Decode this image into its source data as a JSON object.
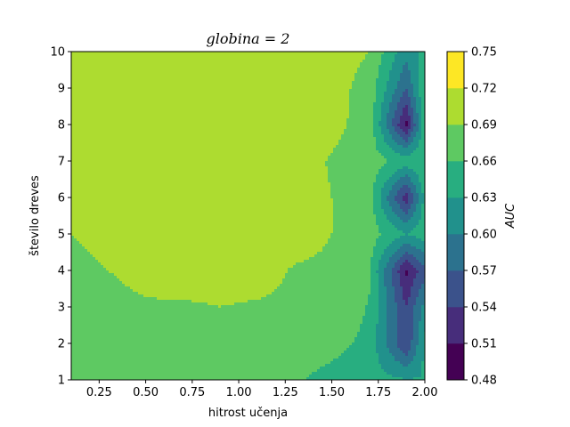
{
  "chart_data": {
    "type": "heatmap",
    "subtype": "filled-contour",
    "title": "globina = 2",
    "xlabel": "hitrost učenja",
    "ylabel": "število dreves",
    "colorbar_label": "AUC",
    "xlim": [
      0.1,
      2.0
    ],
    "ylim": [
      1,
      10
    ],
    "x_ticks": [
      "0.25",
      "0.50",
      "0.75",
      "1.00",
      "1.25",
      "1.50",
      "1.75",
      "2.00"
    ],
    "y_ticks": [
      "1",
      "2",
      "3",
      "4",
      "5",
      "6",
      "7",
      "8",
      "9",
      "10"
    ],
    "levels": [
      0.48,
      0.51,
      0.54,
      0.57,
      0.6,
      0.63,
      0.66,
      0.69,
      0.72,
      0.75
    ],
    "level_labels": [
      "0.48",
      "0.51",
      "0.54",
      "0.57",
      "0.60",
      "0.63",
      "0.66",
      "0.69",
      "0.72",
      "0.75"
    ],
    "level_colors": [
      "#440154",
      "#472d7b",
      "#3b528b",
      "#2c728e",
      "#21918c",
      "#28ae80",
      "#5ec962",
      "#addc30",
      "#fde725"
    ],
    "x": [
      0.1,
      0.3,
      0.5,
      0.7,
      0.9,
      1.1,
      1.3,
      1.5,
      1.7,
      1.9,
      2.0
    ],
    "y": [
      1,
      2,
      3,
      4,
      5,
      6,
      7,
      8,
      9,
      10
    ],
    "z": [
      [
        0.664,
        0.664,
        0.664,
        0.664,
        0.664,
        0.664,
        0.664,
        0.65,
        0.64,
        0.632,
        0.632
      ],
      [
        0.673,
        0.676,
        0.676,
        0.676,
        0.676,
        0.676,
        0.676,
        0.67,
        0.652,
        0.54,
        0.64
      ],
      [
        0.678,
        0.684,
        0.688,
        0.688,
        0.69,
        0.688,
        0.686,
        0.684,
        0.658,
        0.54,
        0.61
      ],
      [
        0.68,
        0.69,
        0.696,
        0.698,
        0.698,
        0.698,
        0.688,
        0.686,
        0.665,
        0.505,
        0.56
      ],
      [
        0.69,
        0.7,
        0.702,
        0.702,
        0.702,
        0.702,
        0.7,
        0.69,
        0.675,
        0.63,
        0.65
      ],
      [
        0.696,
        0.702,
        0.704,
        0.704,
        0.704,
        0.702,
        0.7,
        0.69,
        0.675,
        0.52,
        0.64
      ],
      [
        0.702,
        0.704,
        0.704,
        0.704,
        0.704,
        0.704,
        0.7,
        0.688,
        0.675,
        0.65,
        0.66
      ],
      [
        0.702,
        0.704,
        0.704,
        0.704,
        0.704,
        0.704,
        0.702,
        0.697,
        0.68,
        0.5,
        0.65
      ],
      [
        0.703,
        0.704,
        0.704,
        0.704,
        0.704,
        0.704,
        0.703,
        0.7,
        0.68,
        0.57,
        0.66
      ],
      [
        0.703,
        0.704,
        0.704,
        0.704,
        0.704,
        0.704,
        0.715,
        0.702,
        0.69,
        0.61,
        0.64
      ]
    ]
  }
}
